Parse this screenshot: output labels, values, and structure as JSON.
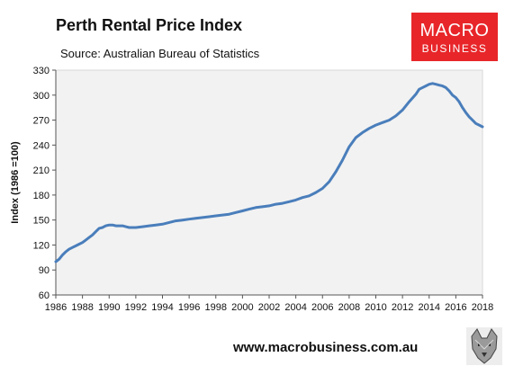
{
  "header": {
    "title": "Perth Rental Price Index",
    "source": "Source: Australian Bureau of Statistics"
  },
  "logo": {
    "line1": "MACRO",
    "line2": "BUSINESS"
  },
  "footer": {
    "url": "www.macrobusiness.com.au",
    "emblem_icon": "wolf-icon"
  },
  "colors": {
    "line": "#4a7ebb",
    "plot_bg": "#f2f2f2",
    "logo_bg": "#e8262a"
  },
  "chart_data": {
    "type": "line",
    "title": "Perth Rental Price Index",
    "subtitle": "Source: Australian Bureau of Statistics",
    "xlabel": "",
    "ylabel": "Index (1986 =100)",
    "xlim": [
      1986,
      2018
    ],
    "ylim": [
      60,
      330
    ],
    "yticks": [
      60,
      90,
      120,
      150,
      180,
      210,
      240,
      270,
      300,
      330
    ],
    "xticks": [
      1986,
      1988,
      1990,
      1992,
      1994,
      1996,
      1998,
      2000,
      2002,
      2004,
      2006,
      2008,
      2010,
      2012,
      2014,
      2016,
      2018
    ],
    "grid": false,
    "legend": "none",
    "series": [
      {
        "x": [
          1986.0,
          1986.25,
          1986.5,
          1986.75,
          1987.0,
          1987.25,
          1987.5,
          1987.75,
          1988.0,
          1988.25,
          1988.5,
          1988.75,
          1989.0,
          1989.25,
          1989.5,
          1989.75,
          1990.0,
          1990.25,
          1990.5,
          1990.75,
          1991.0,
          1991.25,
          1991.5,
          1991.75,
          1992.0,
          1992.5,
          1993.0,
          1993.5,
          1994.0,
          1994.5,
          1995.0,
          1995.5,
          1996.0,
          1996.5,
          1997.0,
          1997.5,
          1998.0,
          1998.5,
          1999.0,
          1999.5,
          2000.0,
          2000.5,
          2001.0,
          2001.5,
          2002.0,
          2002.5,
          2003.0,
          2003.5,
          2004.0,
          2004.5,
          2005.0,
          2005.5,
          2006.0,
          2006.5,
          2007.0,
          2007.5,
          2008.0,
          2008.5,
          2009.0,
          2009.5,
          2010.0,
          2010.5,
          2011.0,
          2011.5,
          2012.0,
          2012.5,
          2013.0,
          2013.25,
          2013.5,
          2013.75,
          2014.0,
          2014.25,
          2014.5,
          2014.75,
          2015.0,
          2015.25,
          2015.5,
          2015.75,
          2016.0,
          2016.25,
          2016.5,
          2016.75,
          2017.0,
          2017.25,
          2017.5,
          2017.75,
          2018.0
        ],
        "y": [
          100,
          103,
          108,
          112,
          115,
          117,
          119,
          121,
          123,
          126,
          129,
          132,
          136,
          140,
          141,
          143,
          144,
          144,
          143,
          143,
          143,
          142,
          141,
          141,
          141,
          142,
          143,
          144,
          145,
          147,
          149,
          150,
          151,
          152,
          153,
          154,
          155,
          156,
          157,
          159,
          161,
          163,
          165,
          166,
          167,
          169,
          170,
          172,
          174,
          177,
          179,
          183,
          188,
          196,
          208,
          222,
          238,
          249,
          255,
          260,
          264,
          267,
          270,
          275,
          282,
          292,
          301,
          307,
          309,
          311,
          313,
          314,
          313,
          312,
          311,
          309,
          305,
          300,
          297,
          292,
          285,
          279,
          274,
          270,
          266,
          264,
          262
        ]
      }
    ]
  }
}
